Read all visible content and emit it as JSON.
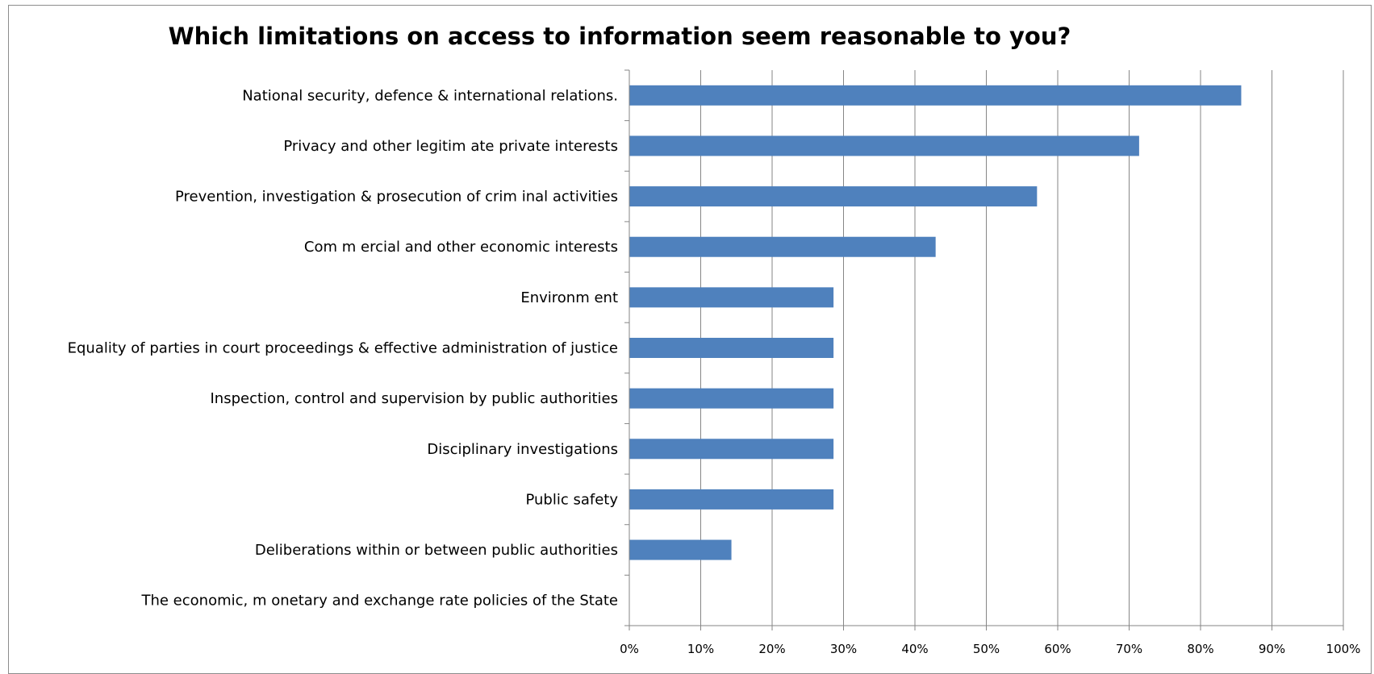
{
  "chart_data": {
    "type": "bar",
    "orientation": "horizontal",
    "title": "Which limitations on access to information seem reasonable to you?",
    "categories": [
      "National security, defence & international relations.",
      "Privacy and other legitim ate private interests",
      "Prevention, investigation & prosecution of crim inal activities",
      "Com m ercial and other economic interests",
      "Environm ent",
      "Equality of parties in court proceedings & effective administration of justice",
      "Inspection, control and supervision by public authorities",
      "Disciplinary investigations",
      "Public safety",
      "Deliberations within or between public authorities",
      "The economic, m onetary and exchange rate policies of the State"
    ],
    "values": [
      0.857,
      0.714,
      0.571,
      0.429,
      0.286,
      0.286,
      0.286,
      0.286,
      0.286,
      0.143,
      0.0
    ],
    "xlim": [
      0,
      1
    ],
    "tick_labels": [
      "0%",
      "10%",
      "20%",
      "30%",
      "40%",
      "50%",
      "60%",
      "70%",
      "80%",
      "90%",
      "100%"
    ],
    "grid": true,
    "legend": "none",
    "bar_color": "#4f81bd",
    "grid_color": "#868686"
  }
}
